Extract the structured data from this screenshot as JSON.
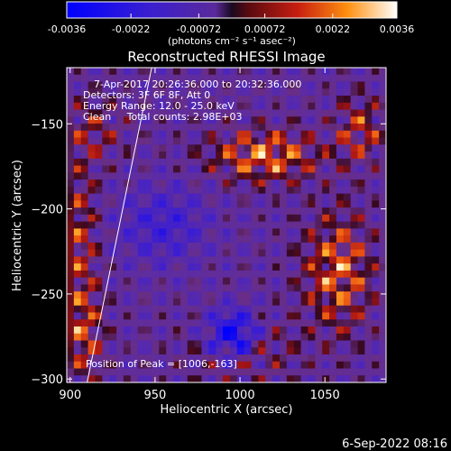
{
  "chart_data": {
    "type": "heatmap",
    "title": "Reconstructed RHESSI Image",
    "xlabel": "Heliocentric X (arcsec)",
    "ylabel": "Heliocentric Y (arcsec)",
    "xlim": [
      898,
      1086
    ],
    "ylim": [
      -302,
      -117
    ],
    "x_ticks": [
      900,
      950,
      1000,
      1050
    ],
    "y_ticks": [
      -300,
      -250,
      -200,
      -150
    ],
    "colorbar": {
      "range": [
        -0.0036,
        0.0036
      ],
      "ticks": [
        -0.0036,
        -0.0022,
        -0.00072,
        0.00072,
        0.0022,
        0.0036
      ],
      "tick_labels": [
        "-0.0036",
        "-0.0022",
        "-0.00072",
        "0.00072",
        "0.0022",
        "0.0036"
      ],
      "label": "(photons cm⁻² s⁻¹ asec⁻²)"
    },
    "info_lines": [
      "7-Apr-2017 20:26:36.000 to 20:32:36.000",
      "Detectors: 3F 6F 8F, Att 0",
      "Energy Range: 12.0 - 25.0 keV",
      "Clean     Total counts: 2.98E+03"
    ],
    "peak_label": "Position of Peak = [1006,-163]",
    "limb_line": [
      [
        910,
        -302
      ],
      [
        948,
        -117
      ]
    ],
    "colors": {
      "background": "#000000",
      "text": "#ffffff"
    }
  },
  "footer": {
    "timestamp": "6-Sep-2022 08:16"
  }
}
